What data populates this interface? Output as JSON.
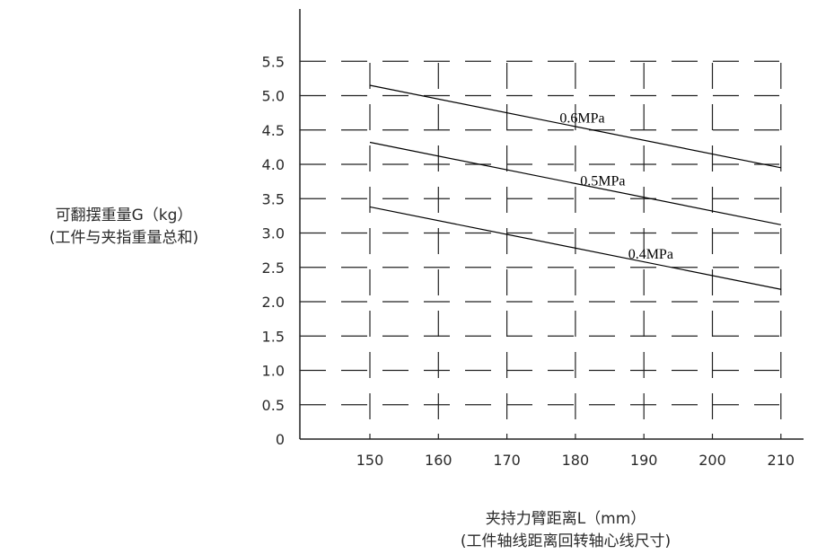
{
  "chart_data": {
    "type": "line",
    "xlabel": [
      "夹持力臂距离L（mm）",
      "(工件轴线距离回转轴心线尺寸)"
    ],
    "ylabel": [
      "可翻摆重量G（kg）",
      "(工件与夹指重量总和)"
    ],
    "x_ticks": [
      "150",
      "160",
      "170",
      "180",
      "190",
      "200",
      "210"
    ],
    "y_ticks": [
      "0",
      "0.5",
      "1.0",
      "1.5",
      "2.0",
      "2.5",
      "3.0",
      "3.5",
      "4.0",
      "4.5",
      "5.0",
      "5.5"
    ],
    "xlim": [
      140,
      212
    ],
    "ylim": [
      0,
      5.5
    ],
    "grid": "dashed",
    "series": [
      {
        "name": "0.6MPa",
        "x": [
          150,
          210
        ],
        "y": [
          5.15,
          3.95
        ]
      },
      {
        "name": "0.5MPa",
        "x": [
          150,
          210
        ],
        "y": [
          4.32,
          3.12
        ]
      },
      {
        "name": "0.4MPa",
        "x": [
          150,
          210
        ],
        "y": [
          3.38,
          2.18
        ]
      }
    ],
    "colors": {
      "line": "#000000",
      "grid": "#222222",
      "text": "#2a2a2a"
    }
  }
}
